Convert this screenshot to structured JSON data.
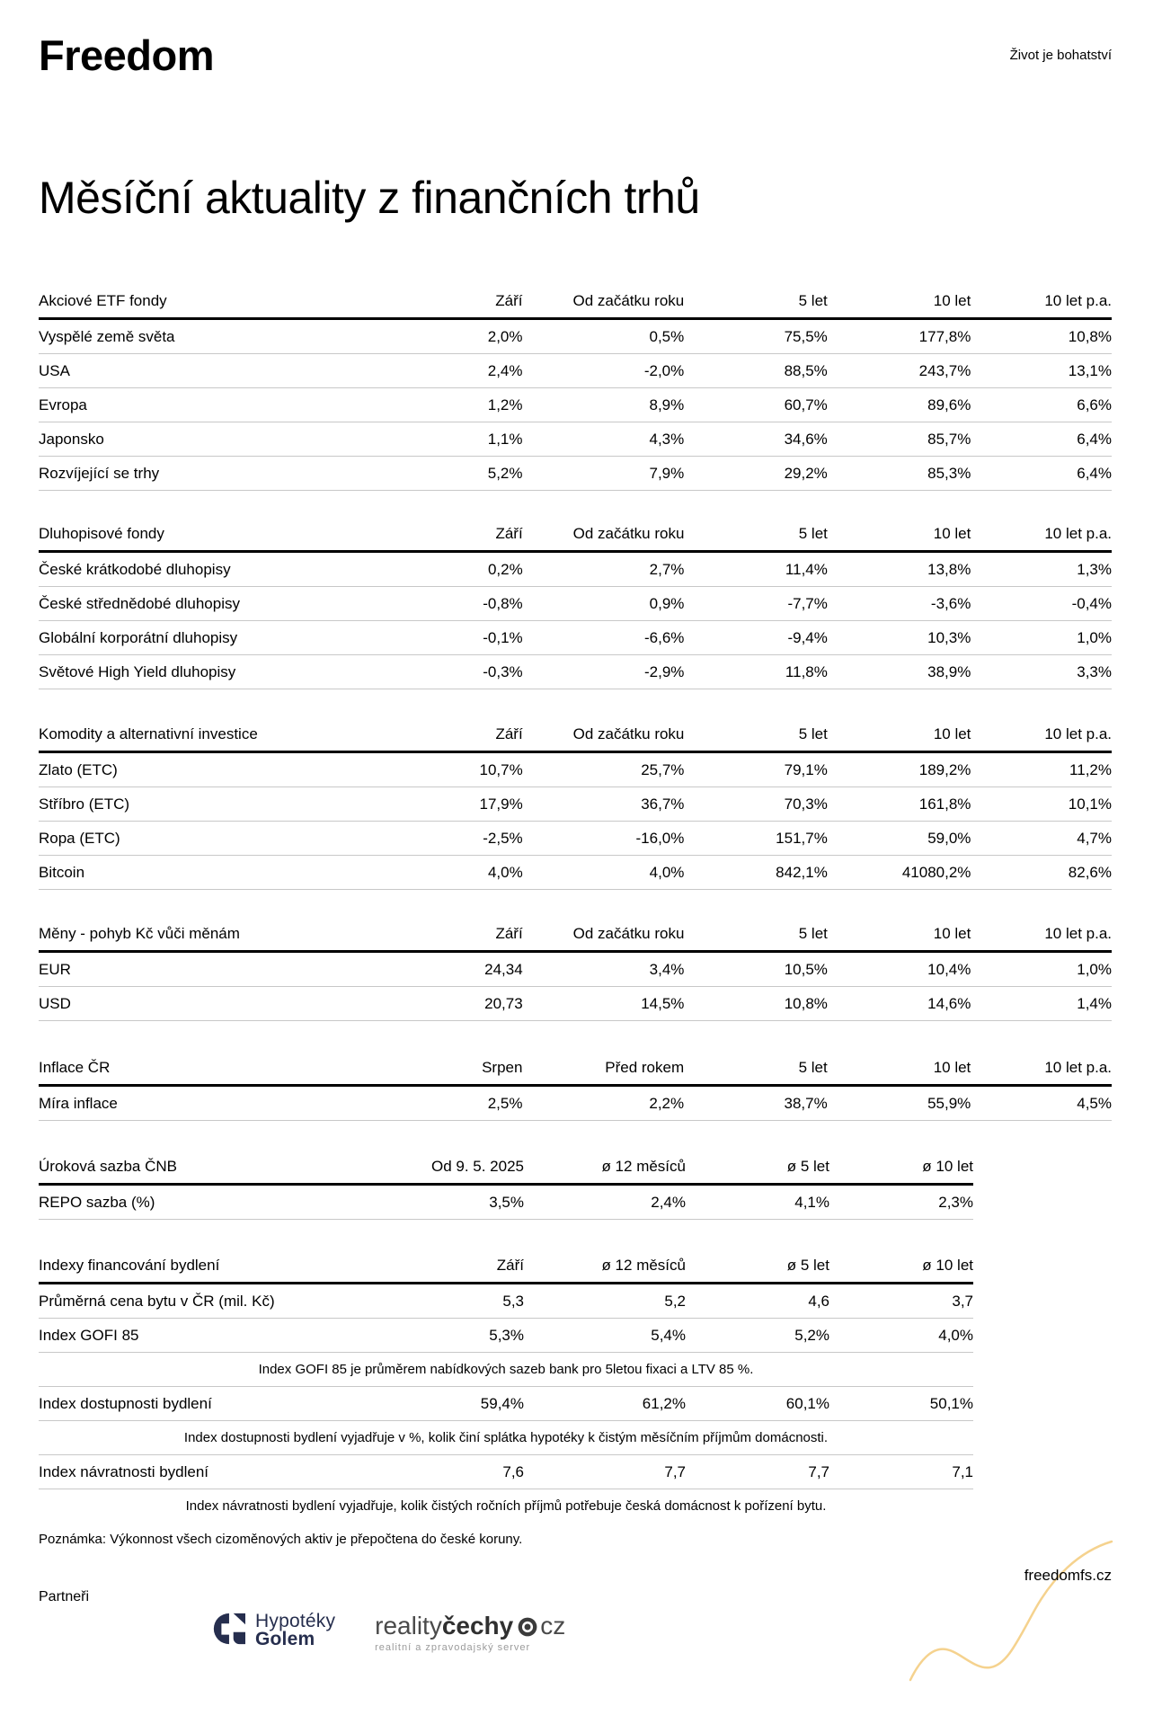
{
  "header": {
    "brand": "Freedom",
    "tagline": "Život je bohatství"
  },
  "title": "Měsíční aktuality z finančních trhů",
  "tables": [
    {
      "name": "Akciové ETF fondy",
      "columns": [
        "Září",
        "Od začátku roku",
        "5 let",
        "10 let",
        "10 let p.a."
      ],
      "rows": [
        {
          "label": "Vyspělé země světa",
          "values": [
            "2,0%",
            "0,5%",
            "75,5%",
            "177,8%",
            "10,8%"
          ]
        },
        {
          "label": "USA",
          "values": [
            "2,4%",
            "-2,0%",
            "88,5%",
            "243,7%",
            "13,1%"
          ]
        },
        {
          "label": "Evropa",
          "values": [
            "1,2%",
            "8,9%",
            "60,7%",
            "89,6%",
            "6,6%"
          ]
        },
        {
          "label": "Japonsko",
          "values": [
            "1,1%",
            "4,3%",
            "34,6%",
            "85,7%",
            "6,4%"
          ]
        },
        {
          "label": "Rozvíjející se trhy",
          "values": [
            "5,2%",
            "7,9%",
            "29,2%",
            "85,3%",
            "6,4%"
          ]
        }
      ]
    },
    {
      "name": "Dluhopisové fondy",
      "columns": [
        "Září",
        "Od začátku roku",
        "5 let",
        "10 let",
        "10 let p.a."
      ],
      "rows": [
        {
          "label": "České krátkodobé dluhopisy",
          "values": [
            "0,2%",
            "2,7%",
            "11,4%",
            "13,8%",
            "1,3%"
          ]
        },
        {
          "label": "České střednědobé dluhopisy",
          "values": [
            "-0,8%",
            "0,9%",
            "-7,7%",
            "-3,6%",
            "-0,4%"
          ]
        },
        {
          "label": "Globální korporátní dluhopisy",
          "values": [
            "-0,1%",
            "-6,6%",
            "-9,4%",
            "10,3%",
            "1,0%"
          ]
        },
        {
          "label": "Světové High Yield dluhopisy",
          "values": [
            "-0,3%",
            "-2,9%",
            "11,8%",
            "38,9%",
            "3,3%"
          ]
        }
      ]
    },
    {
      "name": "Komodity a alternativní investice",
      "columns": [
        "Září",
        "Od začátku roku",
        "5 let",
        "10 let",
        "10 let p.a."
      ],
      "rows": [
        {
          "label": "Zlato (ETC)",
          "values": [
            "10,7%",
            "25,7%",
            "79,1%",
            "189,2%",
            "11,2%"
          ]
        },
        {
          "label": "Stříbro (ETC)",
          "values": [
            "17,9%",
            "36,7%",
            "70,3%",
            "161,8%",
            "10,1%"
          ]
        },
        {
          "label": "Ropa (ETC)",
          "values": [
            "-2,5%",
            "-16,0%",
            "151,7%",
            "59,0%",
            "4,7%"
          ]
        },
        {
          "label": "Bitcoin",
          "values": [
            "4,0%",
            "4,0%",
            "842,1%",
            "41080,2%",
            "82,6%"
          ]
        }
      ]
    },
    {
      "name": "Měny - pohyb Kč vůči měnám",
      "columns": [
        "Září",
        "Od začátku roku",
        "5 let",
        "10 let",
        "10 let p.a."
      ],
      "rows": [
        {
          "label": "EUR",
          "values": [
            "24,34",
            "3,4%",
            "10,5%",
            "10,4%",
            "1,0%"
          ]
        },
        {
          "label": "USD",
          "values": [
            "20,73",
            "14,5%",
            "10,8%",
            "14,6%",
            "1,4%"
          ]
        }
      ]
    },
    {
      "name": "Inflace ČR",
      "columns": [
        "Srpen",
        "Před rokem",
        "5 let",
        "10 let",
        "10 let p.a."
      ],
      "rows": [
        {
          "label": "Míra inflace",
          "values": [
            "2,5%",
            "2,2%",
            "38,7%",
            "55,9%",
            "4,5%"
          ]
        }
      ]
    },
    {
      "name": "Úroková sazba ČNB",
      "columns": [
        "Od 9. 5. 2025",
        "ø 12 měsíců",
        "ø 5 let",
        "ø 10 let"
      ],
      "rows": [
        {
          "label": "REPO sazba (%)",
          "values": [
            "3,5%",
            "2,4%",
            "4,1%",
            "2,3%"
          ]
        }
      ]
    },
    {
      "name": "Indexy financování bydlení",
      "columns": [
        "Září",
        "ø 12 měsíců",
        "ø 5 let",
        "ø 10 let"
      ],
      "rows": [
        {
          "label": "Průměrná cena bytu v ČR (mil. Kč)",
          "values": [
            "5,3",
            "5,2",
            "4,6",
            "3,7"
          ]
        },
        {
          "label": "Index GOFI 85",
          "values": [
            "5,3%",
            "5,4%",
            "5,2%",
            "4,0%"
          ]
        },
        {
          "note": "Index GOFI 85 je průměrem nabídkových sazeb bank pro 5letou fixaci a LTV 85 %."
        },
        {
          "label": "Index dostupnosti bydlení",
          "values": [
            "59,4%",
            "61,2%",
            "60,1%",
            "50,1%"
          ]
        },
        {
          "note": "Index dostupnosti bydlení vyjadřuje v %, kolik činí splátka hypotéky k čistým měsíčním příjmům domácnosti."
        },
        {
          "label": "Index návratnosti bydlení",
          "values": [
            "7,6",
            "7,7",
            "7,7",
            "7,1"
          ]
        },
        {
          "note": "Index návratnosti bydlení vyjadřuje, kolik čistých ročních příjmů potřebuje česká domácnost k pořízení bytu."
        }
      ]
    }
  ],
  "footer": {
    "note": "Poznámka: Výkonnost všech cizoměnových aktiv je přepočtena do české koruny.",
    "website": "freedomfs.cz",
    "partners_label": "Partneři",
    "partners": [
      {
        "name": "Hypotéky Golem",
        "line1": "Hypotéky",
        "line2": "Golem"
      },
      {
        "name": "realitycechy.cz",
        "part1": "reality",
        "part2": "čechy",
        "part3": "cz",
        "subtitle": "realitní a zpravodajský server"
      }
    ]
  },
  "colors": {
    "text": "#000000",
    "separator_gray": "#c8c8c8",
    "accent_curve": "#f5d28e",
    "golem_navy": "#262e4e",
    "reality_dark": "#3b3b3b",
    "reality_text": "#4a4a4a",
    "reality_subtitle_gray": "#9b9b9b"
  }
}
